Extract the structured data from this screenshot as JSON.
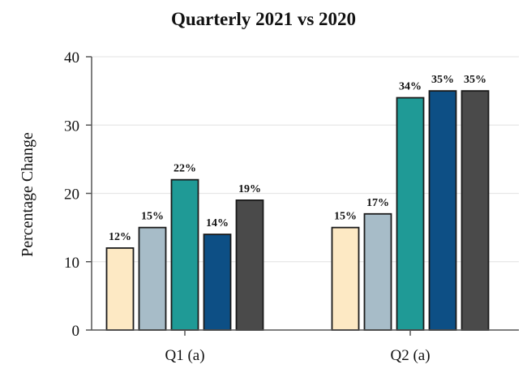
{
  "chart_data": {
    "type": "bar",
    "title": "Quarterly 2021 vs 2020",
    "xlabel": "",
    "ylabel": "Percentage Change",
    "ylim": [
      0,
      40
    ],
    "yticks": [
      0,
      10,
      20,
      30,
      40
    ],
    "grid": true,
    "categories": [
      "Q1 (a)",
      "Q2 (a)"
    ],
    "series": [
      {
        "color": "#fde9c4",
        "values": [
          12,
          15
        ],
        "labels": [
          "12%",
          "15%"
        ]
      },
      {
        "color": "#a7bcc8",
        "values": [
          15,
          17
        ],
        "labels": [
          "15%",
          "17%"
        ]
      },
      {
        "color": "#1f9a96",
        "values": [
          22,
          34
        ],
        "labels": [
          "22%",
          "34%"
        ]
      },
      {
        "color": "#0d4f85",
        "values": [
          14,
          35
        ],
        "labels": [
          "14%",
          "35%"
        ]
      },
      {
        "color": "#4a4a4a",
        "values": [
          19,
          35
        ],
        "labels": [
          "19%",
          "35%"
        ]
      }
    ]
  }
}
